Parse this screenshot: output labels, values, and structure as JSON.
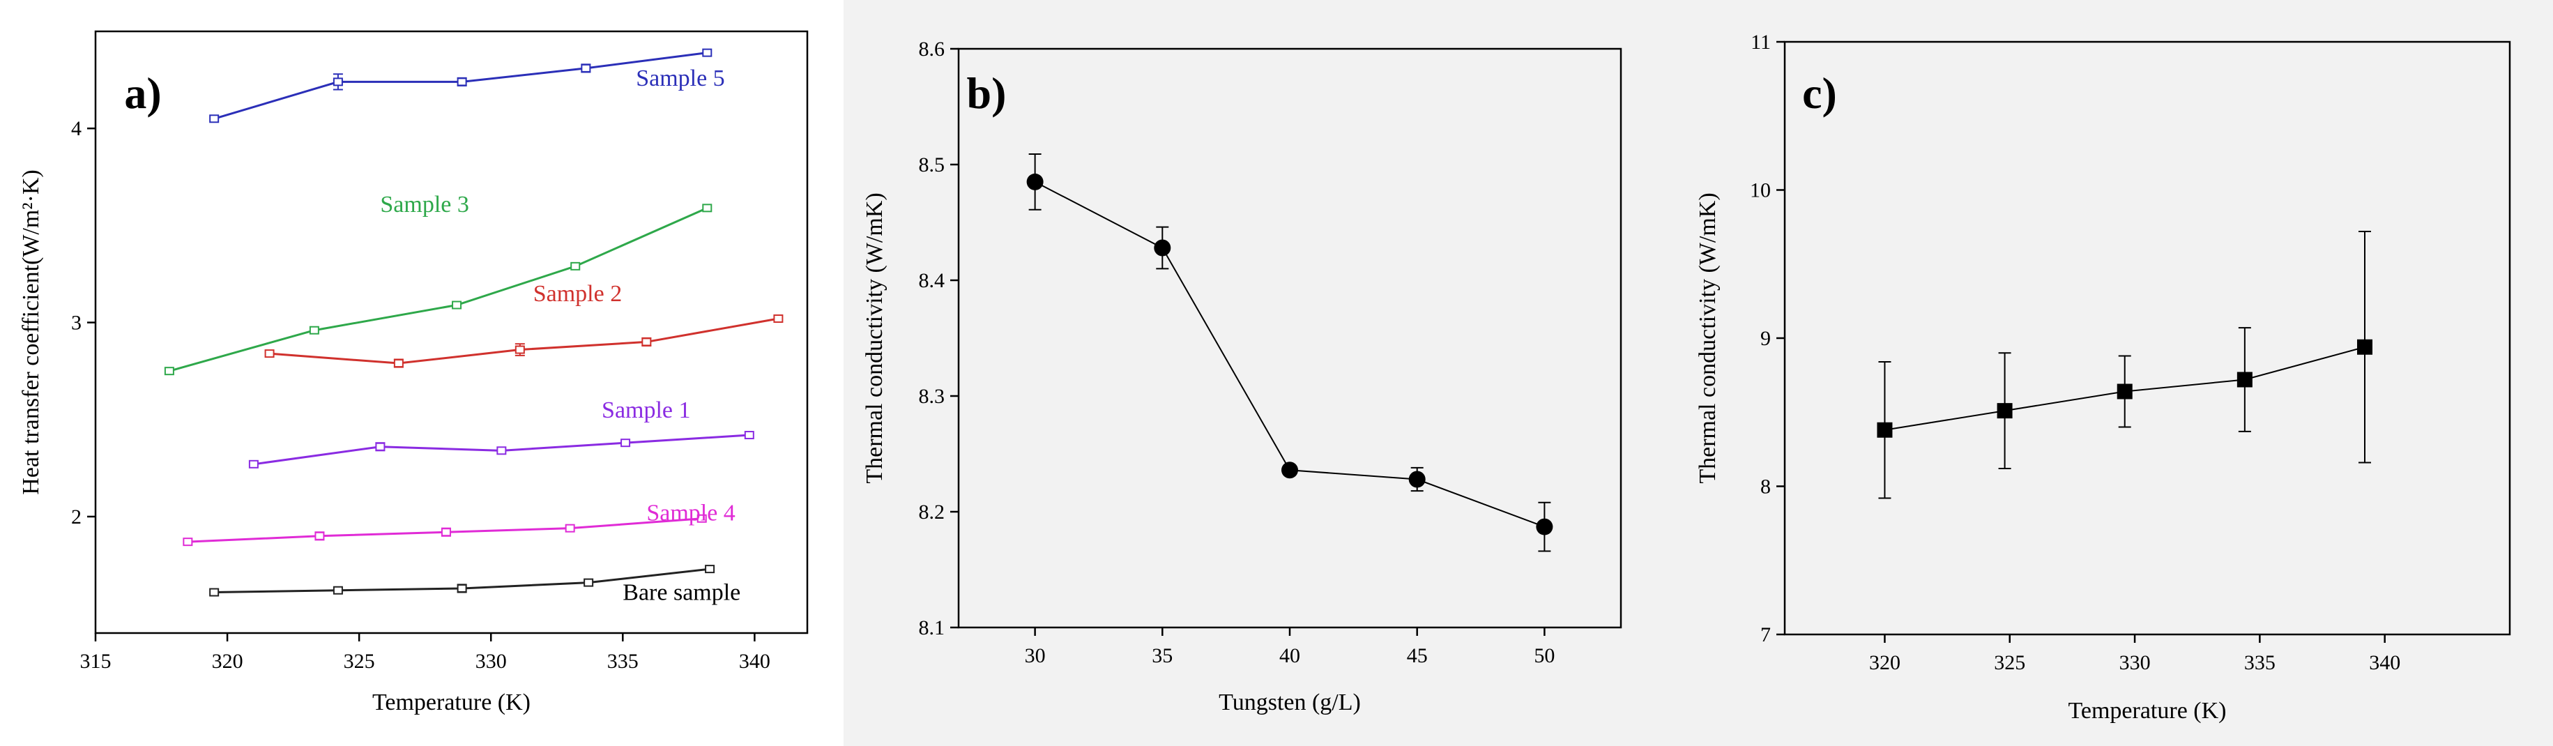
{
  "chart_data": [
    {
      "type": "line",
      "panel_label": "a)",
      "xlabel": "Temperature (K)",
      "ylabel": "Heat transfer coefficient(W/m²·K)",
      "xlim": [
        315,
        342
      ],
      "ylim": [
        1.4,
        4.5
      ],
      "xticks": [
        315,
        320,
        325,
        330,
        335,
        340
      ],
      "yticks": [
        2,
        3,
        4
      ],
      "series": [
        {
          "name": "Sample 5",
          "color": "#2b2fb8",
          "x": [
            319.5,
            324.2,
            328.9,
            333.6,
            338.2
          ],
          "y": [
            4.05,
            4.24,
            4.24,
            4.31,
            4.39
          ],
          "err": [
            0,
            0.04,
            0.02,
            0.02,
            0
          ],
          "label_pos": [
            335.5,
            4.22
          ]
        },
        {
          "name": "Sample 3",
          "color": "#2ea84a",
          "x": [
            317.8,
            323.3,
            328.7,
            333.2,
            338.2
          ],
          "y": [
            2.75,
            2.96,
            3.09,
            3.29,
            3.59
          ],
          "err": [
            0,
            0,
            0,
            0,
            0
          ],
          "label_pos": [
            325.8,
            3.57
          ]
        },
        {
          "name": "Sample 2",
          "color": "#d0312d",
          "x": [
            321.6,
            326.5,
            331.1,
            335.9,
            340.9
          ],
          "y": [
            2.84,
            2.79,
            2.86,
            2.9,
            3.02
          ],
          "err": [
            0,
            0.02,
            0.03,
            0.02,
            0
          ],
          "label_pos": [
            331.6,
            3.11
          ]
        },
        {
          "name": "Sample 1",
          "color": "#8a2be2",
          "x": [
            321.0,
            325.8,
            330.4,
            335.1,
            339.8
          ],
          "y": [
            2.27,
            2.36,
            2.34,
            2.38,
            2.42
          ],
          "err": [
            0,
            0.02,
            0,
            0,
            0
          ],
          "label_pos": [
            334.2,
            2.51
          ]
        },
        {
          "name": "Sample 4",
          "color": "#e02bd6",
          "x": [
            318.5,
            323.5,
            328.3,
            333.0,
            338.0
          ],
          "y": [
            1.87,
            1.9,
            1.92,
            1.94,
            1.99
          ],
          "err": [
            0,
            0.02,
            0.02,
            0,
            0
          ],
          "label_pos": [
            335.9,
            1.98
          ]
        },
        {
          "name": "Bare sample",
          "color": "#222222",
          "x": [
            319.5,
            324.2,
            328.9,
            333.7,
            338.3
          ],
          "y": [
            1.61,
            1.62,
            1.63,
            1.66,
            1.73
          ],
          "err": [
            0,
            0,
            0.02,
            0,
            0
          ],
          "label_pos": [
            335.0,
            1.57
          ]
        }
      ]
    },
    {
      "type": "line",
      "panel_label": "b)",
      "xlabel": "Tungsten (g/L)",
      "ylabel": "Thermal conductivity (W/mK)",
      "xlim": [
        27,
        53
      ],
      "ylim": [
        8.1,
        8.6
      ],
      "xticks": [
        30,
        35,
        40,
        45,
        50
      ],
      "yticks": [
        8.1,
        8.2,
        8.3,
        8.4,
        8.5,
        8.6
      ],
      "series": [
        {
          "name": "Thermal conductivity",
          "color": "#000000",
          "x": [
            30,
            35,
            40,
            45,
            50
          ],
          "y": [
            8.485,
            8.428,
            8.236,
            8.228,
            8.187
          ],
          "err": [
            0.024,
            0.018,
            0,
            0.01,
            0.021
          ]
        }
      ]
    },
    {
      "type": "line",
      "panel_label": "c)",
      "xlabel": "Temperature (K)",
      "ylabel": "Thermal conductivity (W/mK)",
      "xlim": [
        316,
        345
      ],
      "ylim": [
        7,
        11
      ],
      "xticks": [
        320,
        325,
        330,
        335,
        340
      ],
      "yticks": [
        7,
        8,
        9,
        10,
        11
      ],
      "series": [
        {
          "name": "Thermal conductivity",
          "color": "#000000",
          "x": [
            320,
            324.8,
            329.6,
            334.4,
            339.2
          ],
          "y": [
            8.38,
            8.51,
            8.64,
            8.72,
            8.94
          ],
          "err": [
            0.46,
            0.39,
            0.24,
            0.35,
            0.78
          ]
        }
      ]
    }
  ]
}
